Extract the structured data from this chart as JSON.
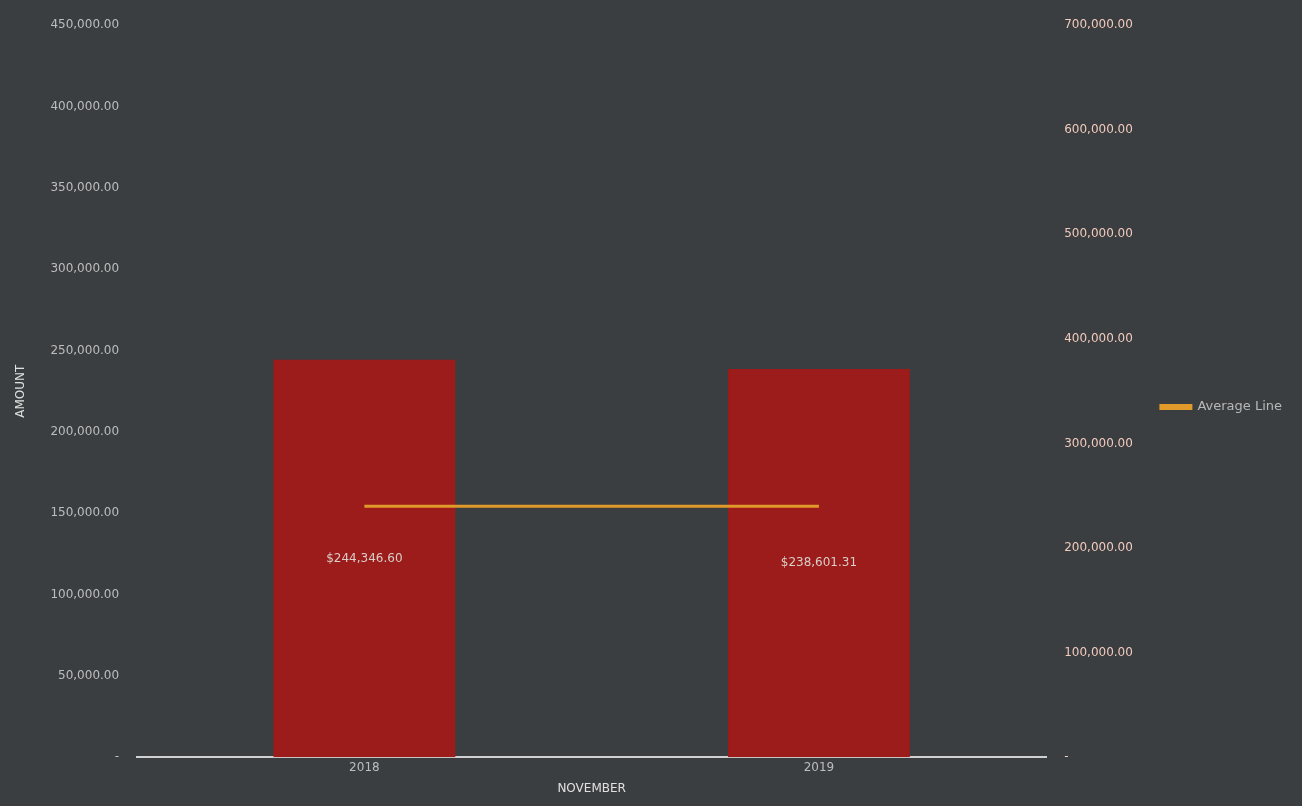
{
  "chart_data": {
    "type": "bar",
    "xlabel": "NOVEMBER",
    "ylabel": "AMOUNT",
    "categories": [
      "2018",
      "2019"
    ],
    "series": [
      {
        "color": "#9c1b1b",
        "values": [
          244346.6,
          238601.31
        ],
        "value_labels": [
          "$244,346.60",
          "$238,601.31"
        ]
      },
      {
        "type": "line",
        "name": "Average Line",
        "color": "#e09a2a",
        "axis": "y2",
        "values": [
          240000,
          240000
        ]
      }
    ],
    "ylim": [
      0,
      450000
    ],
    "yticks": [
      {
        "value": 0,
        "label": "-"
      },
      {
        "value": 50000,
        "label": "50,000.00"
      },
      {
        "value": 100000,
        "label": "100,000.00"
      },
      {
        "value": 150000,
        "label": "150,000.00"
      },
      {
        "value": 200000,
        "label": "200,000.00"
      },
      {
        "value": 250000,
        "label": "250,000.00"
      },
      {
        "value": 300000,
        "label": "300,000.00"
      },
      {
        "value": 350000,
        "label": "350,000.00"
      },
      {
        "value": 400000,
        "label": "400,000.00"
      },
      {
        "value": 450000,
        "label": "450,000.00"
      }
    ],
    "y2lim": [
      0,
      700000
    ],
    "y2ticks": [
      {
        "value": 0,
        "label": "-"
      },
      {
        "value": 100000,
        "label": "100,000.00"
      },
      {
        "value": 200000,
        "label": "200,000.00"
      },
      {
        "value": 300000,
        "label": "300,000.00"
      },
      {
        "value": 400000,
        "label": "400,000.00"
      },
      {
        "value": 500000,
        "label": "500,000.00"
      },
      {
        "value": 600000,
        "label": "600,000.00"
      },
      {
        "value": 700000,
        "label": "700,000.00"
      }
    ],
    "grid": false,
    "legend": "right",
    "marker": "none"
  }
}
